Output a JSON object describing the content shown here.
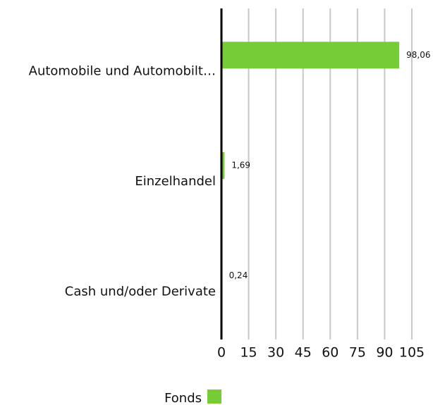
{
  "chart_data": {
    "type": "hbar",
    "categories": [
      "Automobile und Automobilt…",
      "Einzelhandel",
      "Cash und/oder Derivate"
    ],
    "series": [
      {
        "name": "Fonds",
        "color": "#76cc36",
        "values": [
          98.06,
          1.69,
          0.24
        ],
        "value_labels": [
          "98,06",
          "1,69",
          "0,24"
        ]
      }
    ],
    "xlim": [
      0,
      105
    ],
    "xticks": [
      0,
      15,
      30,
      45,
      60,
      75,
      90,
      105
    ],
    "grid": true
  }
}
